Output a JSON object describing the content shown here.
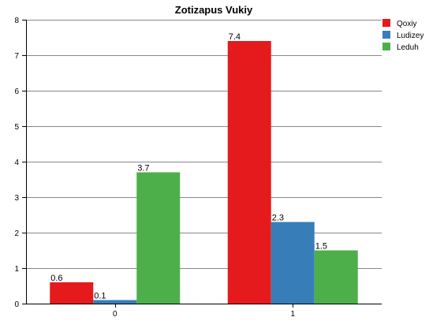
{
  "chart_data": {
    "type": "bar",
    "title": "Zotizapus Vukiy",
    "xlabel": "",
    "ylabel": "",
    "categories": [
      "0",
      "1"
    ],
    "ylim": [
      0,
      8
    ],
    "yticks": [
      "0",
      "1",
      "2",
      "3",
      "4",
      "5",
      "6",
      "7",
      "8"
    ],
    "grid": true,
    "legend_position": "top-right",
    "series": [
      {
        "name": "Qoxiy",
        "color": "#e41a1c",
        "values": [
          0.6,
          7.4
        ],
        "labels": [
          "0.6",
          "7.4"
        ]
      },
      {
        "name": "Ludizey",
        "color": "#377eb8",
        "values": [
          0.1,
          2.3
        ],
        "labels": [
          "0.1",
          "2.3"
        ]
      },
      {
        "name": "Leduh",
        "color": "#4daf4a",
        "values": [
          3.7,
          1.5
        ],
        "labels": [
          "3.7",
          "1.5"
        ]
      }
    ]
  }
}
